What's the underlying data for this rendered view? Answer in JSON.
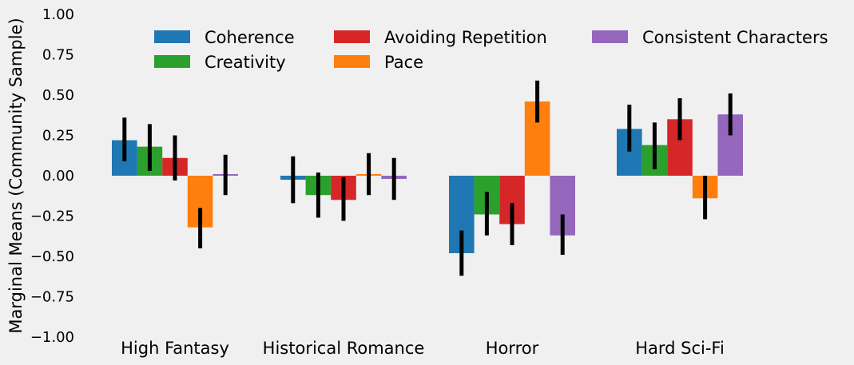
{
  "chart_data": {
    "type": "bar",
    "title": "",
    "xlabel": "",
    "ylabel": "Marginal Means (Community Sample)",
    "ylim": [
      -1.0,
      1.0
    ],
    "yticks": [
      "−1.00",
      "−0.75",
      "−0.50",
      "−0.25",
      "0.00",
      "0.25",
      "0.50",
      "0.75",
      "1.00"
    ],
    "categories": [
      "High Fantasy",
      "Historical Romance",
      "Horror",
      "Hard Sci-Fi"
    ],
    "grid": false,
    "legend_position": "top",
    "series": [
      {
        "name": "Coherence",
        "color": "#1f77b4",
        "values": [
          0.22,
          -0.025,
          -0.48,
          0.29
        ],
        "err_low": [
          0.09,
          -0.17,
          -0.62,
          0.15
        ],
        "err_high": [
          0.36,
          0.12,
          -0.34,
          0.44
        ]
      },
      {
        "name": "Creativity",
        "color": "#2ca02c",
        "values": [
          0.18,
          -0.12,
          -0.24,
          0.19
        ],
        "err_low": [
          0.03,
          -0.26,
          -0.37,
          0.04
        ],
        "err_high": [
          0.32,
          0.02,
          -0.1,
          0.33
        ]
      },
      {
        "name": "Avoiding Repetition",
        "color": "#d62728",
        "values": [
          0.11,
          -0.15,
          -0.3,
          0.35
        ],
        "err_low": [
          -0.03,
          -0.28,
          -0.43,
          0.22
        ],
        "err_high": [
          0.25,
          -0.01,
          -0.17,
          0.48
        ]
      },
      {
        "name": "Pace",
        "color": "#ff7f0e",
        "values": [
          -0.32,
          0.01,
          0.46,
          -0.14
        ],
        "err_low": [
          -0.45,
          -0.12,
          0.33,
          -0.27
        ],
        "err_high": [
          -0.2,
          0.14,
          0.59,
          0.0
        ]
      },
      {
        "name": "Consistent Characters",
        "color": "#9467bd",
        "values": [
          0.01,
          -0.02,
          -0.37,
          0.38
        ],
        "err_low": [
          -0.12,
          -0.15,
          -0.49,
          0.25
        ],
        "err_high": [
          0.13,
          0.11,
          -0.24,
          0.51
        ]
      }
    ]
  }
}
